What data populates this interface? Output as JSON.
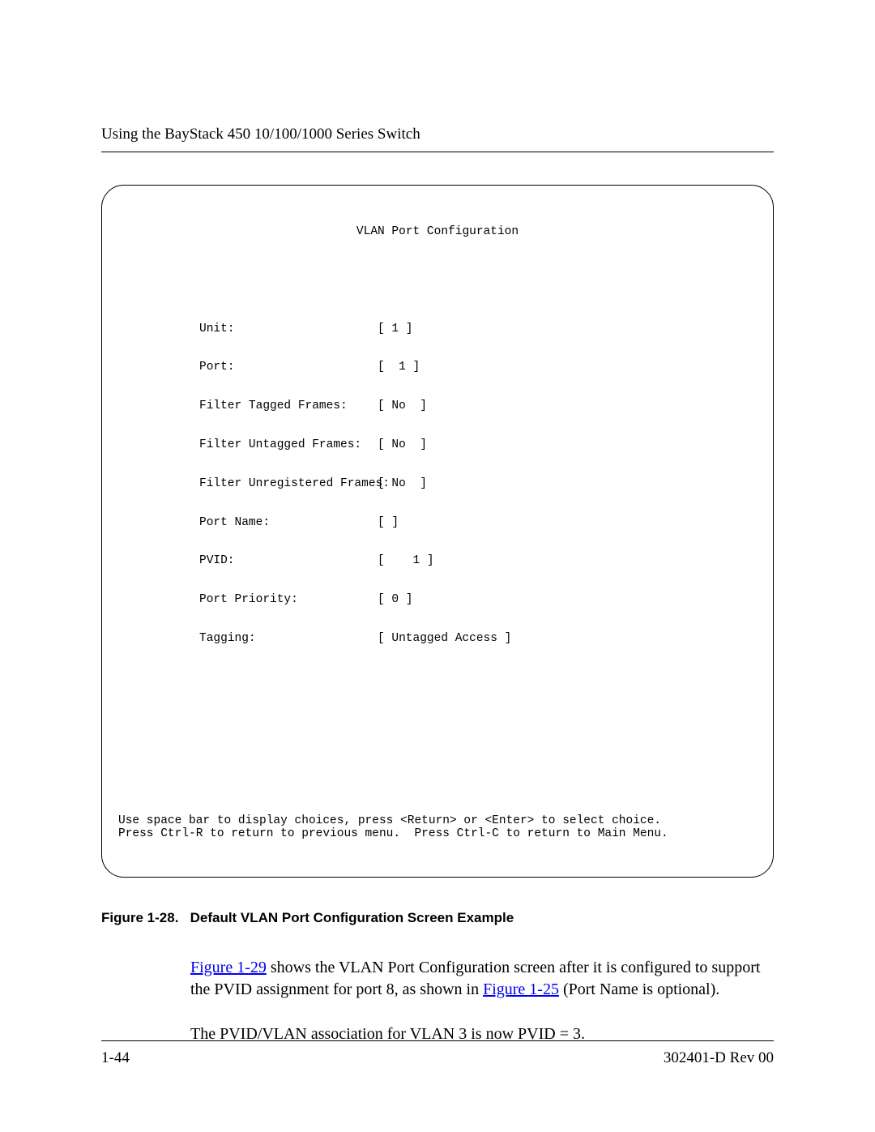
{
  "header": {
    "title": "Using the BayStack 450 10/100/1000 Series Switch"
  },
  "terminal": {
    "title": "VLAN Port Configuration",
    "rows": [
      {
        "label": "Unit:",
        "value": "[ 1 ]"
      },
      {
        "label": "Port:",
        "value": "[  1 ]"
      },
      {
        "label": "Filter Tagged Frames:",
        "value": "[ No  ]"
      },
      {
        "label": "Filter Untagged Frames:",
        "value": "[ No  ]"
      },
      {
        "label": "Filter Unregistered Frames:",
        "value": "[ No  ]"
      },
      {
        "label": "Port Name:",
        "value": "[ ]"
      },
      {
        "label": "PVID:",
        "value": "[    1 ]"
      },
      {
        "label": "Port Priority:",
        "value": "[ 0 ]"
      },
      {
        "label": "Tagging:",
        "value": "[ Untagged Access ]"
      }
    ],
    "footer_line1": "Use space bar to display choices, press <Return> or <Enter> to select choice.",
    "footer_line2": "Press Ctrl-R to return to previous menu.  Press Ctrl-C to return to Main Menu."
  },
  "figure_caption": {
    "label": "Figure 1-28.",
    "text": "Default VLAN Port Configuration Screen Example"
  },
  "paragraphs": {
    "p1_link1": "Figure 1-29",
    "p1_mid": " shows the VLAN Port Configuration screen after it is configured to support the PVID assignment for port 8, as shown in ",
    "p1_link2": "Figure 1-25",
    "p1_end": " (Port Name is optional).",
    "p2": "The PVID/VLAN association for VLAN 3 is now PVID = 3."
  },
  "footer": {
    "page_number": "1-44",
    "doc_id": "302401-D Rev 00"
  },
  "styles": {
    "background_color": "#ffffff",
    "text_color": "#000000",
    "link_color": "#0000ee",
    "border_color": "#000000",
    "terminal_font": "Courier New",
    "body_font": "Times New Roman",
    "caption_font": "Arial"
  }
}
